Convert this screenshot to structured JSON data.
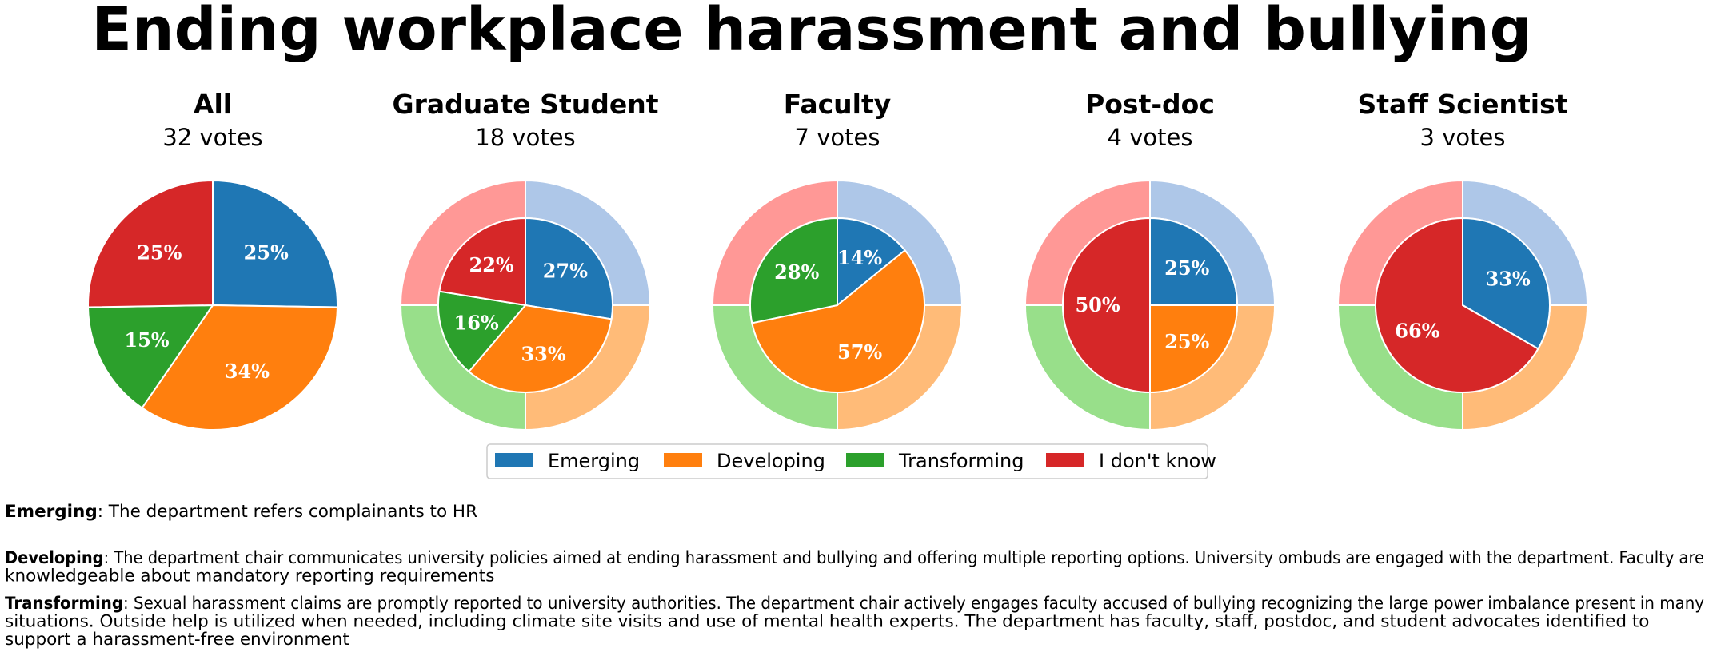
{
  "title": "Ending workplace harassment and bullying",
  "colors": {
    "Emerging": "#1f77b4",
    "Developing": "#ff7f0e",
    "Transforming": "#2ca02c",
    "I don't know": "#d62728"
  },
  "light_colors": {
    "Emerging": "#aec7e8",
    "Developing": "#ffbb78",
    "Transforming": "#98df8a",
    "I don't know": "#ff9896"
  },
  "chart_data": {
    "type": "pie",
    "categories": [
      "Emerging",
      "Developing",
      "Transforming",
      "I don't know"
    ],
    "legend": [
      "Emerging",
      "Developing",
      "Transforming",
      "I don't know"
    ],
    "reference_shares": [
      0.25,
      0.25,
      0.25,
      0.25
    ],
    "pies": [
      {
        "name": "All",
        "votes_label": "32 votes",
        "values": [
          25,
          34,
          15,
          25
        ],
        "labels": [
          "25%",
          "34%",
          "15%",
          "25%"
        ]
      },
      {
        "name": "Graduate Student",
        "votes_label": "18 votes",
        "values": [
          27,
          33,
          16,
          22
        ],
        "labels": [
          "27%",
          "33%",
          "16%",
          "22%"
        ]
      },
      {
        "name": "Faculty",
        "votes_label": "7 votes",
        "values": [
          14,
          57,
          28,
          0
        ],
        "labels": [
          "14%",
          "57%",
          "28%",
          ""
        ]
      },
      {
        "name": "Post-doc",
        "votes_label": "4 votes",
        "values": [
          25,
          25,
          0,
          50
        ],
        "labels": [
          "25%",
          "25%",
          "",
          "50%"
        ]
      },
      {
        "name": "Staff Scientist",
        "votes_label": "3 votes",
        "values": [
          33,
          0,
          0,
          66
        ],
        "labels": [
          "33%",
          "",
          "",
          "66%"
        ]
      }
    ]
  },
  "definitions": [
    {
      "term": "Emerging",
      "lines": [
        ": The department refers complainants to HR"
      ]
    },
    {
      "term": "Developing",
      "lines": [
        ": The department chair communicates university policies aimed at ending harassment and bullying and offering multiple reporting options. University ombuds are engaged with the department. Faculty are",
        "knowledgeable about mandatory reporting requirements"
      ]
    },
    {
      "term": "Transforming",
      "lines": [
        ": Sexual harassment claims are promptly reported to university authorities. The department chair actively engages faculty accused of bullying recognizing the large power imbalance present in many",
        "situations. Outside help is utilized when needed, including climate site visits and use of mental health experts. The department has faculty, staff, postdoc, and student advocates identified to",
        "support a harassment-free environment"
      ]
    }
  ]
}
